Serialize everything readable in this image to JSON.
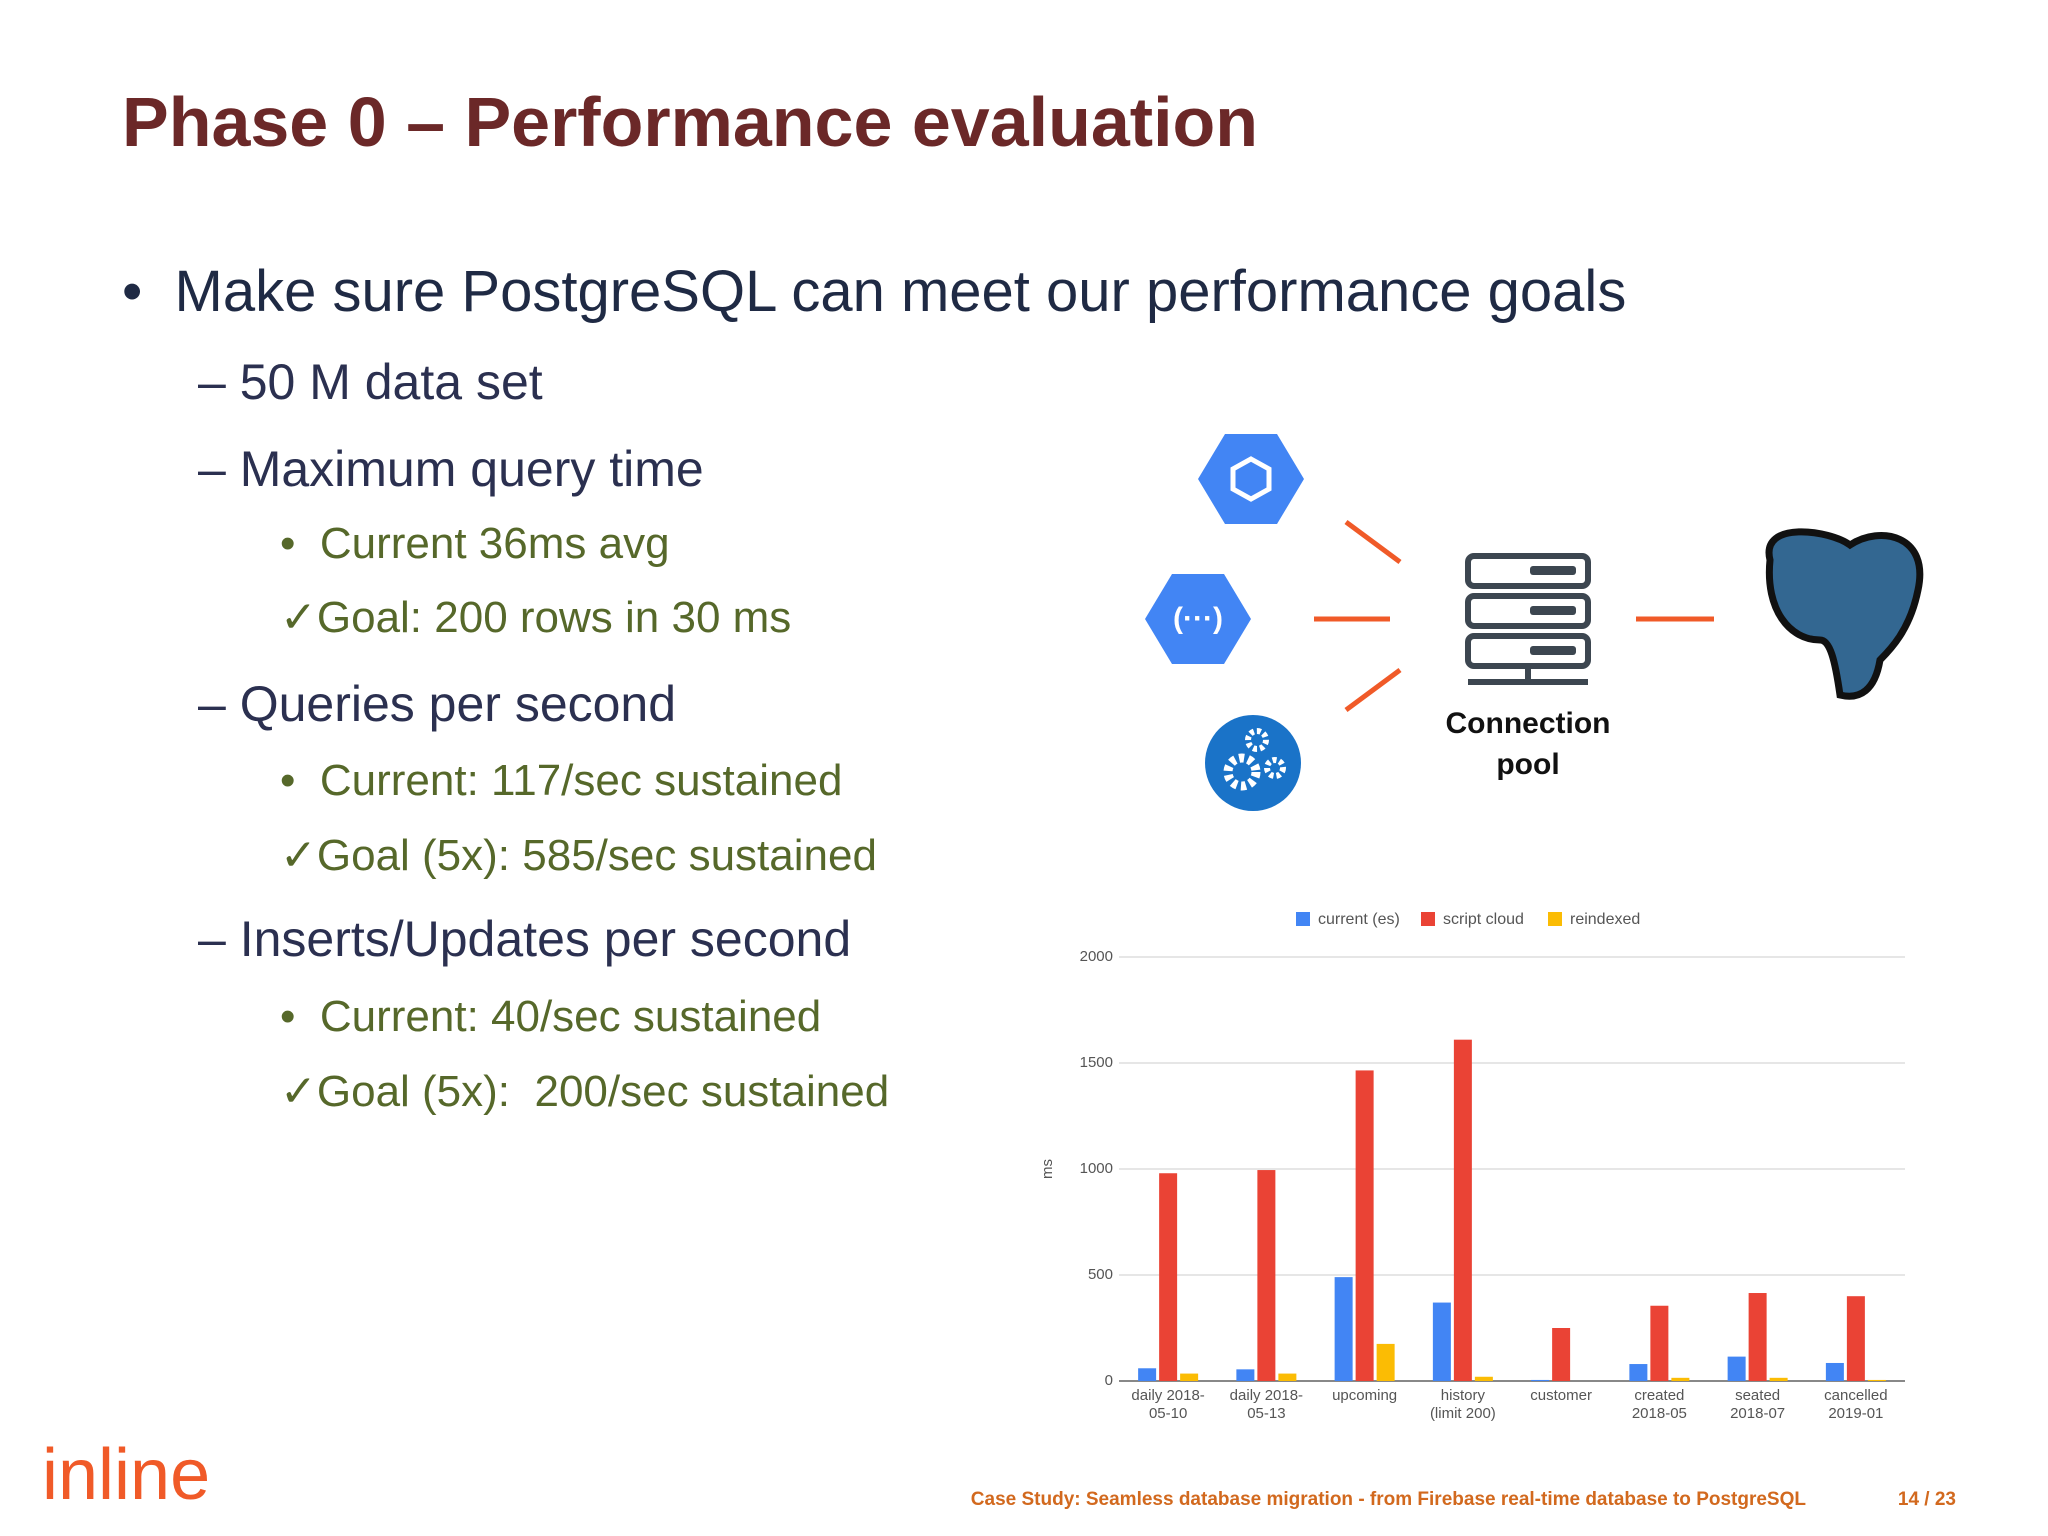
{
  "title": "Phase 0 – Performance evaluation",
  "bullets": [
    {
      "level": 0,
      "text": "•  Make sure PostgreSQL can meet our performance goals"
    },
    {
      "level": 1,
      "text": "– 50 M data set"
    },
    {
      "level": 1,
      "text": "– Maximum query time"
    },
    {
      "level": 2,
      "text": "•  Current 36ms avg"
    },
    {
      "level": 2,
      "text": "✓Goal: 200 rows in 30 ms"
    },
    {
      "level": 1,
      "text": "– Queries per second"
    },
    {
      "level": 2,
      "text": "•  Current: 117/sec sustained"
    },
    {
      "level": 2,
      "text": "✓Goal (5x): 585/sec sustained"
    },
    {
      "level": 1,
      "text": "– Inserts/Updates per second"
    },
    {
      "level": 2,
      "text": "•  Current: 40/sec sustained"
    },
    {
      "level": 2,
      "text": "✓Goal (5x):  200/sec sustained"
    }
  ],
  "diagram": {
    "pool_label": [
      "Connection",
      "pool"
    ]
  },
  "chart_data": {
    "type": "bar",
    "y_label": "ms",
    "categories": [
      "daily 2018-05-10",
      "daily 2018-05-13",
      "upcoming",
      "history (limit 200)",
      "customer",
      "created 2018-05",
      "seated 2018-07",
      "cancelled 2019-01"
    ],
    "series": [
      {
        "name": "current (es)",
        "color": "#4285f4",
        "values": [
          60,
          55,
          490,
          370,
          5,
          80,
          115,
          85
        ]
      },
      {
        "name": "script cloud",
        "color": "#ea4335",
        "values": [
          980,
          995,
          1465,
          1610,
          250,
          355,
          415,
          400
        ]
      },
      {
        "name": "reindexed",
        "color": "#fbbc04",
        "values": [
          35,
          35,
          175,
          20,
          0,
          15,
          15,
          5
        ]
      }
    ],
    "ylim": [
      0,
      2000
    ],
    "yticks": [
      0,
      500,
      1000,
      1500,
      2000
    ],
    "grid": true
  },
  "footer": {
    "logo": "inline",
    "caption": "Case Study: Seamless database migration - from Firebase real-time database to PostgreSQL",
    "page": "14  / 23"
  }
}
